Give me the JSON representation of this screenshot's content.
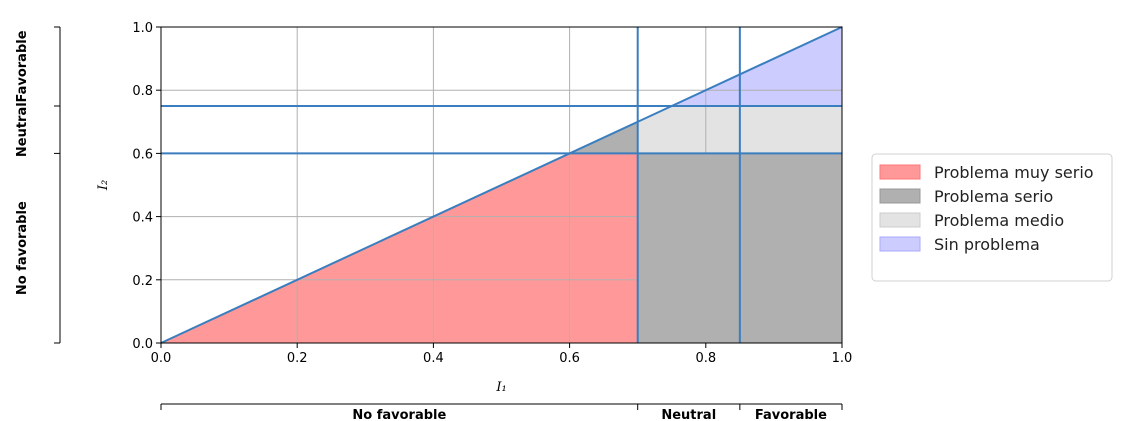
{
  "chart_data": {
    "type": "area",
    "x_label": "I₁",
    "y_label": "I₂",
    "xlim": [
      0,
      1
    ],
    "ylim": [
      0,
      1
    ],
    "x_ticks": [
      "0.0",
      "0.2",
      "0.4",
      "0.6",
      "0.8",
      "1.0"
    ],
    "y_ticks": [
      "0.0",
      "0.2",
      "0.4",
      "0.6",
      "0.8",
      "1.0"
    ],
    "grid": true,
    "diagonal_line": {
      "x": [
        0,
        1
      ],
      "y": [
        0,
        1
      ],
      "color": "#3a7ebf"
    },
    "vertical_thresholds": [
      0.7,
      0.85
    ],
    "horizontal_thresholds": [
      0.6,
      0.75
    ],
    "threshold_color": "#3a7ebf",
    "regions": [
      {
        "name": "Problema muy serio",
        "color": "#ff9999",
        "polygon": [
          [
            0,
            0
          ],
          [
            0.6,
            0.6
          ],
          [
            0.7,
            0.6
          ],
          [
            0.7,
            0
          ]
        ]
      },
      {
        "name": "Problema serio",
        "color": "#b0b0b0",
        "polygon": [
          [
            0.6,
            0.6
          ],
          [
            0.7,
            0.7
          ],
          [
            0.7,
            0.6
          ]
        ]
      },
      {
        "name": "Problema serio",
        "color": "#b0b0b0",
        "polygon": [
          [
            0.7,
            0
          ],
          [
            0.7,
            0.6
          ],
          [
            1,
            0.6
          ],
          [
            1,
            0
          ]
        ]
      },
      {
        "name": "Problema medio",
        "color": "#e3e3e3",
        "polygon": [
          [
            0.7,
            0.6
          ],
          [
            0.7,
            0.7
          ],
          [
            0.75,
            0.75
          ],
          [
            1,
            0.75
          ],
          [
            1,
            0.6
          ]
        ]
      },
      {
        "name": "Sin problema",
        "color": "#ccccff",
        "polygon": [
          [
            0.75,
            0.75
          ],
          [
            1,
            1
          ],
          [
            1,
            0.75
          ]
        ]
      }
    ],
    "legend": {
      "placement": "right",
      "entries": [
        {
          "label": "Problema muy serio",
          "color": "#ff9999",
          "edge": "#ff7777"
        },
        {
          "label": "Problema serio",
          "color": "#b0b0b0",
          "edge": "#999999"
        },
        {
          "label": "Problema medio",
          "color": "#e3e3e3",
          "edge": "#cccccc"
        },
        {
          "label": "Sin problema",
          "color": "#ccccff",
          "edge": "#aaaaff"
        }
      ]
    },
    "x_bands": [
      {
        "label": "No favorable",
        "from": 0,
        "to": 0.7
      },
      {
        "label": "Neutral",
        "from": 0.7,
        "to": 0.85
      },
      {
        "label": "Favorable",
        "from": 0.85,
        "to": 1
      }
    ],
    "y_bands": [
      {
        "label": "No favorable",
        "from": 0,
        "to": 0.6
      },
      {
        "label": "Neutral",
        "from": 0.6,
        "to": 0.75
      },
      {
        "label": "Favorable",
        "from": 0.75,
        "to": 1
      }
    ]
  }
}
